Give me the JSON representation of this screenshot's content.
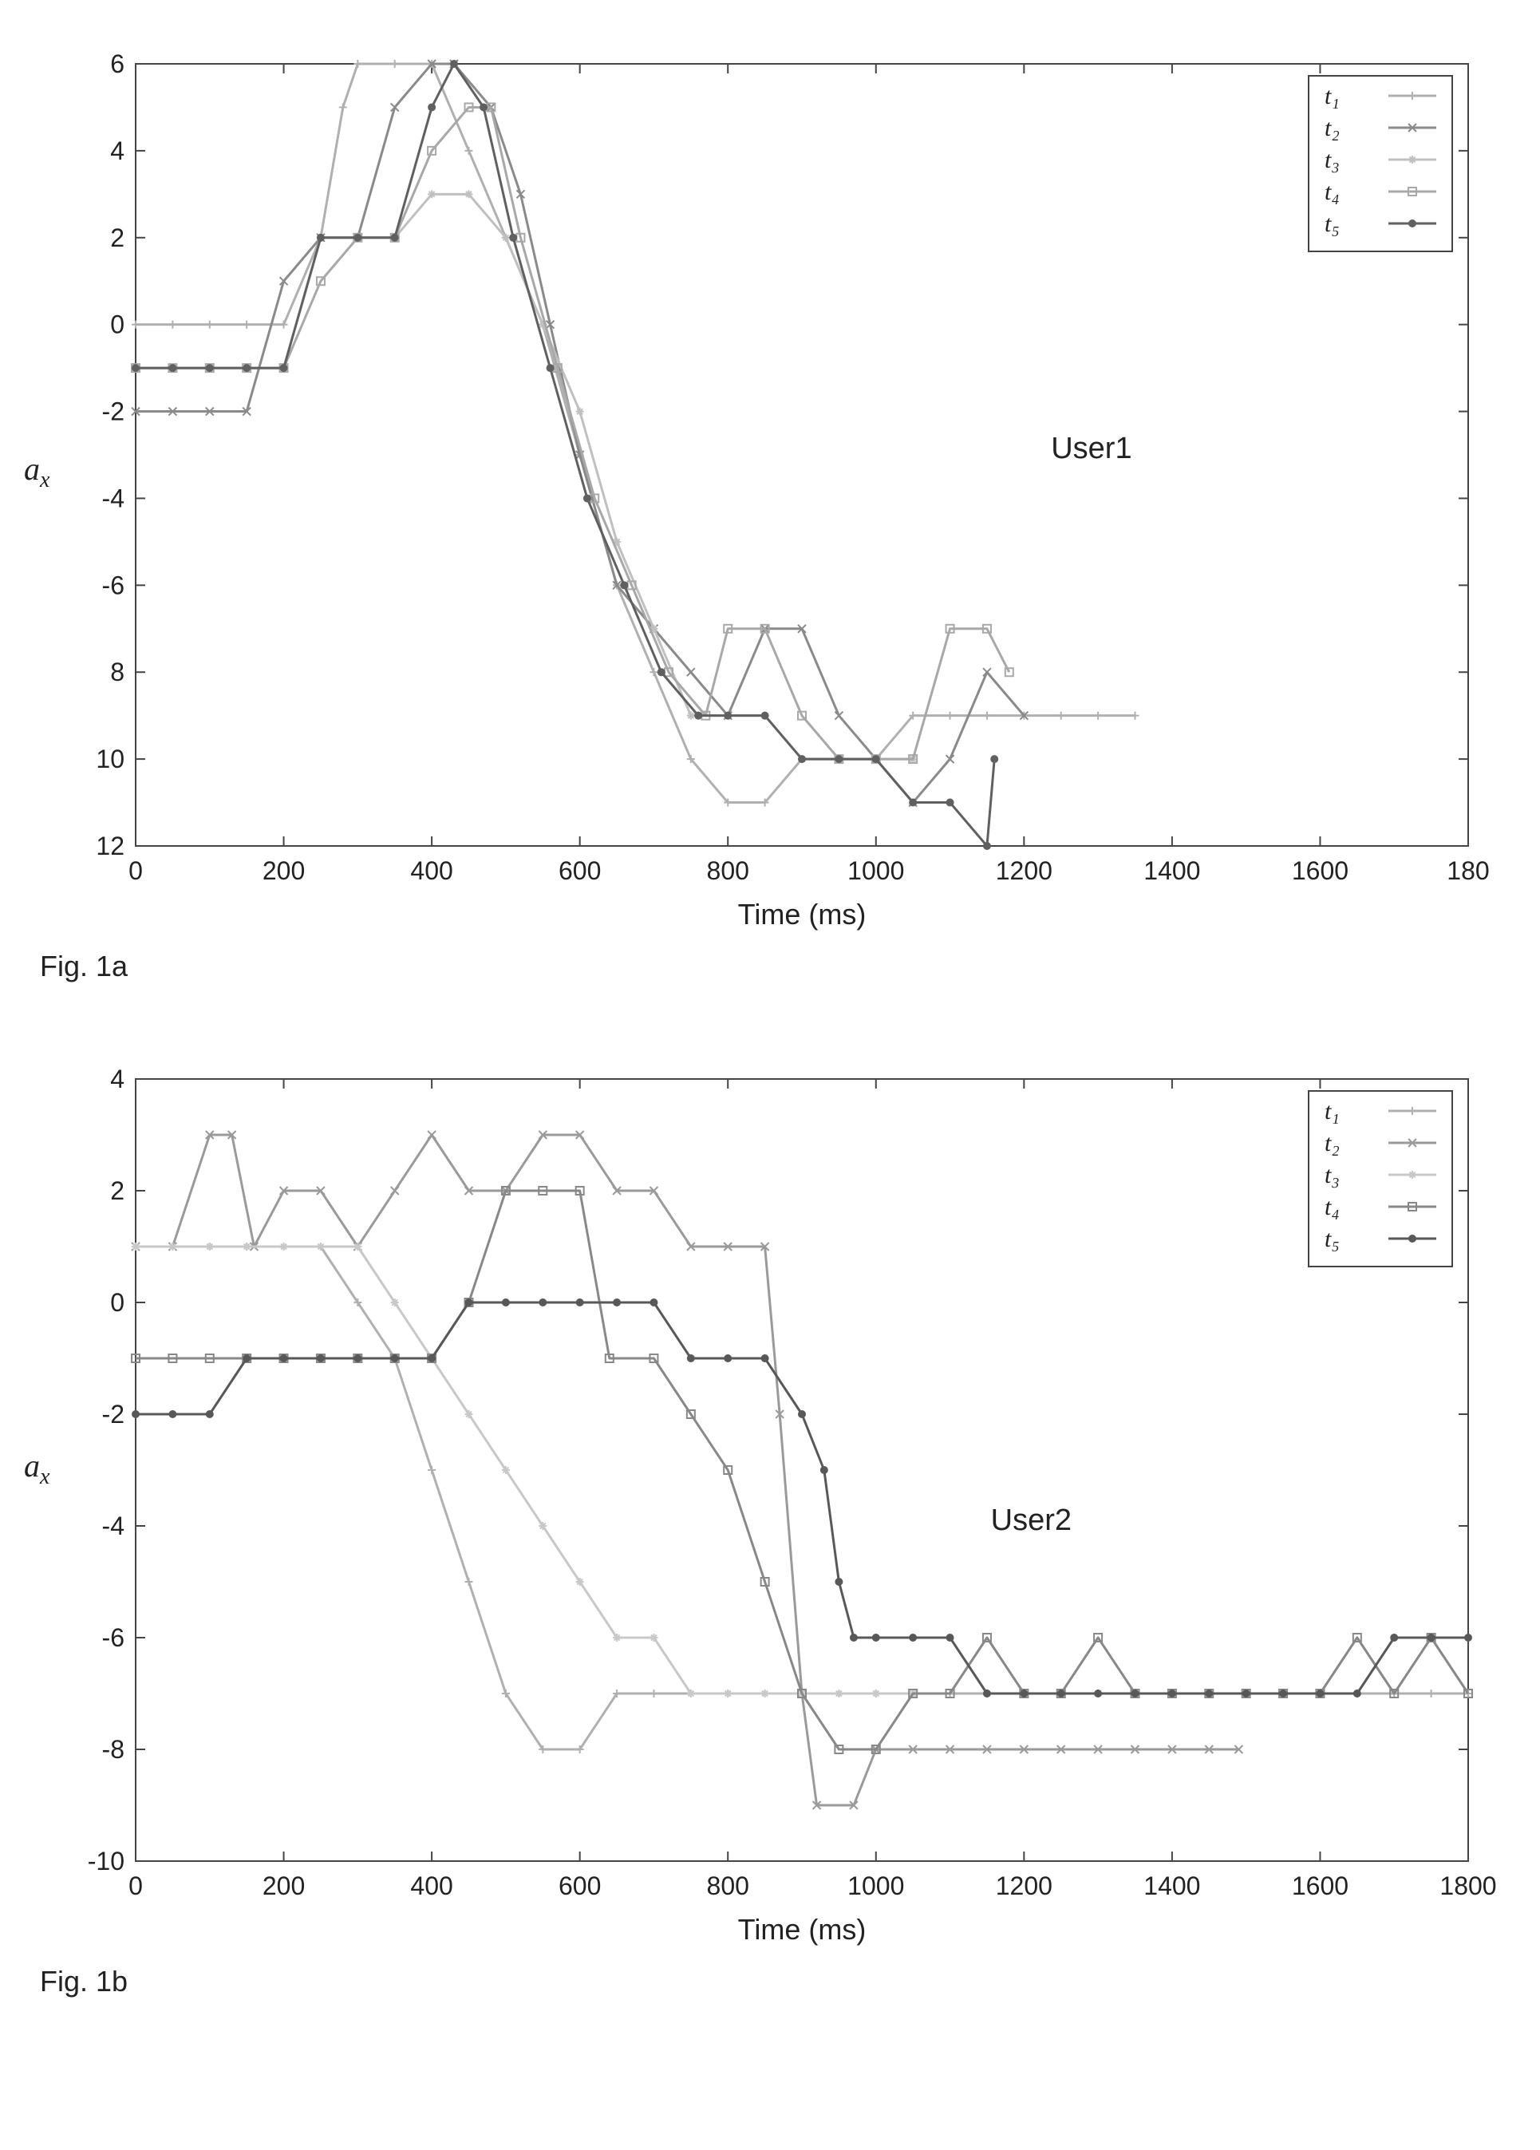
{
  "background_color": "#ffffff",
  "axis_color": "#444444",
  "tick_color": "#444444",
  "tick_fontsize": 32,
  "label_fontsize": 36,
  "annot_fontsize": 38,
  "line_width": 3,
  "marker_radius": 5,
  "legend_fontsize": 30,
  "chartA": {
    "caption": "Fig. 1a",
    "ylabel_html": "a<sub>x</sub>",
    "xlabel": "Time (ms)",
    "annotation": "User1",
    "xlim": [
      0,
      1800
    ],
    "ylim": [
      -12,
      6
    ],
    "xtick_step": 200,
    "xticks_labels": [
      "0",
      "200",
      "400",
      "600",
      "800",
      "1000",
      "1200",
      "1400",
      "1600",
      "180"
    ],
    "yticks": [
      6,
      4,
      2,
      0,
      -2,
      -4,
      -6,
      -8,
      -10,
      -12
    ],
    "yticks_labels": [
      "6",
      "4",
      "2",
      "0",
      "-2",
      "-4",
      "-6",
      "8",
      "10",
      "12"
    ],
    "legend_items": [
      "t₁",
      "t₂",
      "t₃",
      "t₄",
      "t₅"
    ],
    "series": [
      {
        "name": "t1",
        "color": "#b0b0b0",
        "marker": "plus",
        "points": [
          [
            0,
            0
          ],
          [
            50,
            0
          ],
          [
            100,
            0
          ],
          [
            150,
            0
          ],
          [
            200,
            0
          ],
          [
            250,
            2
          ],
          [
            280,
            5
          ],
          [
            300,
            6
          ],
          [
            350,
            6
          ],
          [
            400,
            6
          ],
          [
            450,
            4
          ],
          [
            500,
            2
          ],
          [
            550,
            0
          ],
          [
            600,
            -3
          ],
          [
            650,
            -6
          ],
          [
            700,
            -8
          ],
          [
            750,
            -10
          ],
          [
            800,
            -11
          ],
          [
            850,
            -11
          ],
          [
            900,
            -10
          ],
          [
            950,
            -10
          ],
          [
            1000,
            -10
          ],
          [
            1050,
            -9
          ],
          [
            1100,
            -9
          ],
          [
            1150,
            -9
          ],
          [
            1200,
            -9
          ],
          [
            1250,
            -9
          ],
          [
            1300,
            -9
          ],
          [
            1350,
            -9
          ]
        ]
      },
      {
        "name": "t2",
        "color": "#8a8a8a",
        "marker": "x",
        "points": [
          [
            0,
            -2
          ],
          [
            50,
            -2
          ],
          [
            100,
            -2
          ],
          [
            150,
            -2
          ],
          [
            200,
            1
          ],
          [
            250,
            2
          ],
          [
            300,
            2
          ],
          [
            350,
            5
          ],
          [
            400,
            6
          ],
          [
            430,
            6
          ],
          [
            480,
            5
          ],
          [
            520,
            3
          ],
          [
            560,
            0
          ],
          [
            600,
            -3
          ],
          [
            650,
            -6
          ],
          [
            700,
            -7
          ],
          [
            750,
            -8
          ],
          [
            800,
            -9
          ],
          [
            850,
            -7
          ],
          [
            900,
            -7
          ],
          [
            950,
            -9
          ],
          [
            1000,
            -10
          ],
          [
            1050,
            -11
          ],
          [
            1100,
            -10
          ],
          [
            1150,
            -8
          ],
          [
            1200,
            -9
          ]
        ]
      },
      {
        "name": "t3",
        "color": "#c0c0c0",
        "marker": "star",
        "points": [
          [
            0,
            -1
          ],
          [
            50,
            -1
          ],
          [
            100,
            -1
          ],
          [
            150,
            -1
          ],
          [
            200,
            -1
          ],
          [
            250,
            2
          ],
          [
            300,
            2
          ],
          [
            350,
            2
          ],
          [
            400,
            3
          ],
          [
            450,
            3
          ],
          [
            500,
            2
          ],
          [
            550,
            0
          ],
          [
            600,
            -2
          ],
          [
            650,
            -5
          ],
          [
            700,
            -7
          ],
          [
            750,
            -9
          ],
          [
            800,
            -9
          ],
          [
            850,
            -9
          ],
          [
            900,
            -10
          ],
          [
            950,
            -10
          ],
          [
            1000,
            -10
          ],
          [
            1050,
            -10
          ]
        ]
      },
      {
        "name": "t4",
        "color": "#a8a8a8",
        "marker": "square",
        "points": [
          [
            0,
            -1
          ],
          [
            50,
            -1
          ],
          [
            100,
            -1
          ],
          [
            150,
            -1
          ],
          [
            200,
            -1
          ],
          [
            250,
            1
          ],
          [
            300,
            2
          ],
          [
            350,
            2
          ],
          [
            400,
            4
          ],
          [
            450,
            5
          ],
          [
            480,
            5
          ],
          [
            520,
            2
          ],
          [
            570,
            -1
          ],
          [
            620,
            -4
          ],
          [
            670,
            -6
          ],
          [
            720,
            -8
          ],
          [
            770,
            -9
          ],
          [
            800,
            -7
          ],
          [
            850,
            -7
          ],
          [
            900,
            -9
          ],
          [
            950,
            -10
          ],
          [
            1000,
            -10
          ],
          [
            1050,
            -10
          ],
          [
            1100,
            -7
          ],
          [
            1150,
            -7
          ],
          [
            1180,
            -8
          ]
        ]
      },
      {
        "name": "t5",
        "color": "#606060",
        "marker": "circle",
        "points": [
          [
            0,
            -1
          ],
          [
            50,
            -1
          ],
          [
            100,
            -1
          ],
          [
            150,
            -1
          ],
          [
            200,
            -1
          ],
          [
            250,
            2
          ],
          [
            300,
            2
          ],
          [
            350,
            2
          ],
          [
            400,
            5
          ],
          [
            430,
            6
          ],
          [
            470,
            5
          ],
          [
            510,
            2
          ],
          [
            560,
            -1
          ],
          [
            610,
            -4
          ],
          [
            660,
            -6
          ],
          [
            710,
            -8
          ],
          [
            760,
            -9
          ],
          [
            800,
            -9
          ],
          [
            850,
            -9
          ],
          [
            900,
            -10
          ],
          [
            950,
            -10
          ],
          [
            1000,
            -10
          ],
          [
            1050,
            -11
          ],
          [
            1100,
            -11
          ],
          [
            1150,
            -12
          ],
          [
            1160,
            -10
          ]
        ]
      }
    ]
  },
  "chartB": {
    "caption": "Fig. 1b",
    "ylabel_html": "a<sub>x</sub>",
    "xlabel": "Time (ms)",
    "annotation": "User2",
    "xlim": [
      0,
      1800
    ],
    "ylim": [
      -10,
      4
    ],
    "xtick_step": 200,
    "xticks_labels": [
      "0",
      "200",
      "400",
      "600",
      "800",
      "1000",
      "1200",
      "1400",
      "1600",
      "1800"
    ],
    "yticks": [
      4,
      2,
      0,
      -2,
      -4,
      -6,
      -8,
      -10
    ],
    "yticks_labels": [
      "4",
      "2",
      "0",
      "-2",
      "-4",
      "-6",
      "-8",
      "-10"
    ],
    "legend_items": [
      "t₁",
      "t₂",
      "t₃",
      "t₄",
      "t₅"
    ],
    "series": [
      {
        "name": "t1",
        "color": "#b0b0b0",
        "marker": "plus",
        "points": [
          [
            0,
            1
          ],
          [
            50,
            1
          ],
          [
            100,
            1
          ],
          [
            150,
            1
          ],
          [
            200,
            1
          ],
          [
            250,
            1
          ],
          [
            300,
            0
          ],
          [
            350,
            -1
          ],
          [
            400,
            -3
          ],
          [
            450,
            -5
          ],
          [
            500,
            -7
          ],
          [
            550,
            -8
          ],
          [
            600,
            -8
          ],
          [
            650,
            -7
          ],
          [
            700,
            -7
          ],
          [
            750,
            -7
          ],
          [
            800,
            -7
          ],
          [
            850,
            -7
          ],
          [
            900,
            -7
          ],
          [
            950,
            -7
          ],
          [
            1000,
            -7
          ],
          [
            1050,
            -7
          ],
          [
            1100,
            -7
          ],
          [
            1150,
            -7
          ],
          [
            1200,
            -7
          ],
          [
            1250,
            -7
          ],
          [
            1300,
            -7
          ],
          [
            1350,
            -7
          ],
          [
            1400,
            -7
          ],
          [
            1450,
            -7
          ],
          [
            1500,
            -7
          ],
          [
            1550,
            -7
          ],
          [
            1600,
            -7
          ],
          [
            1650,
            -7
          ],
          [
            1700,
            -7
          ],
          [
            1750,
            -7
          ],
          [
            1800,
            -7
          ]
        ]
      },
      {
        "name": "t2",
        "color": "#9a9a9a",
        "marker": "x",
        "points": [
          [
            0,
            1
          ],
          [
            50,
            1
          ],
          [
            100,
            3
          ],
          [
            130,
            3
          ],
          [
            160,
            1
          ],
          [
            200,
            2
          ],
          [
            250,
            2
          ],
          [
            300,
            1
          ],
          [
            350,
            2
          ],
          [
            400,
            3
          ],
          [
            450,
            2
          ],
          [
            500,
            2
          ],
          [
            550,
            3
          ],
          [
            600,
            3
          ],
          [
            650,
            2
          ],
          [
            700,
            2
          ],
          [
            750,
            1
          ],
          [
            800,
            1
          ],
          [
            850,
            1
          ],
          [
            870,
            -2
          ],
          [
            900,
            -7
          ],
          [
            920,
            -9
          ],
          [
            970,
            -9
          ],
          [
            1000,
            -8
          ],
          [
            1050,
            -8
          ],
          [
            1100,
            -8
          ],
          [
            1150,
            -8
          ],
          [
            1200,
            -8
          ],
          [
            1250,
            -8
          ],
          [
            1300,
            -8
          ],
          [
            1350,
            -8
          ],
          [
            1400,
            -8
          ],
          [
            1450,
            -8
          ],
          [
            1490,
            -8
          ]
        ]
      },
      {
        "name": "t3",
        "color": "#c8c8c8",
        "marker": "star",
        "points": [
          [
            0,
            1
          ],
          [
            50,
            1
          ],
          [
            100,
            1
          ],
          [
            150,
            1
          ],
          [
            200,
            1
          ],
          [
            250,
            1
          ],
          [
            300,
            1
          ],
          [
            350,
            0
          ],
          [
            400,
            -1
          ],
          [
            450,
            -2
          ],
          [
            500,
            -3
          ],
          [
            550,
            -4
          ],
          [
            600,
            -5
          ],
          [
            650,
            -6
          ],
          [
            700,
            -6
          ],
          [
            750,
            -7
          ],
          [
            800,
            -7
          ],
          [
            850,
            -7
          ],
          [
            900,
            -7
          ],
          [
            950,
            -7
          ],
          [
            1000,
            -7
          ],
          [
            1050,
            -7
          ]
        ]
      },
      {
        "name": "t4",
        "color": "#888888",
        "marker": "square",
        "points": [
          [
            0,
            -1
          ],
          [
            50,
            -1
          ],
          [
            100,
            -1
          ],
          [
            150,
            -1
          ],
          [
            200,
            -1
          ],
          [
            250,
            -1
          ],
          [
            300,
            -1
          ],
          [
            350,
            -1
          ],
          [
            400,
            -1
          ],
          [
            450,
            0
          ],
          [
            500,
            2
          ],
          [
            550,
            2
          ],
          [
            600,
            2
          ],
          [
            640,
            -1
          ],
          [
            700,
            -1
          ],
          [
            750,
            -2
          ],
          [
            800,
            -3
          ],
          [
            850,
            -5
          ],
          [
            900,
            -7
          ],
          [
            950,
            -8
          ],
          [
            1000,
            -8
          ],
          [
            1050,
            -7
          ],
          [
            1100,
            -7
          ],
          [
            1150,
            -6
          ],
          [
            1200,
            -7
          ],
          [
            1250,
            -7
          ],
          [
            1300,
            -6
          ],
          [
            1350,
            -7
          ],
          [
            1400,
            -7
          ],
          [
            1450,
            -7
          ],
          [
            1500,
            -7
          ],
          [
            1550,
            -7
          ],
          [
            1600,
            -7
          ],
          [
            1650,
            -6
          ],
          [
            1700,
            -7
          ],
          [
            1750,
            -6
          ],
          [
            1800,
            -7
          ]
        ]
      },
      {
        "name": "t5",
        "color": "#585858",
        "marker": "circle",
        "points": [
          [
            0,
            -2
          ],
          [
            50,
            -2
          ],
          [
            100,
            -2
          ],
          [
            150,
            -1
          ],
          [
            200,
            -1
          ],
          [
            250,
            -1
          ],
          [
            300,
            -1
          ],
          [
            350,
            -1
          ],
          [
            400,
            -1
          ],
          [
            450,
            0
          ],
          [
            500,
            0
          ],
          [
            550,
            0
          ],
          [
            600,
            0
          ],
          [
            650,
            0
          ],
          [
            700,
            0
          ],
          [
            750,
            -1
          ],
          [
            800,
            -1
          ],
          [
            850,
            -1
          ],
          [
            900,
            -2
          ],
          [
            930,
            -3
          ],
          [
            950,
            -5
          ],
          [
            970,
            -6
          ],
          [
            1000,
            -6
          ],
          [
            1050,
            -6
          ],
          [
            1100,
            -6
          ],
          [
            1150,
            -7
          ],
          [
            1200,
            -7
          ],
          [
            1250,
            -7
          ],
          [
            1300,
            -7
          ],
          [
            1350,
            -7
          ],
          [
            1400,
            -7
          ],
          [
            1450,
            -7
          ],
          [
            1500,
            -7
          ],
          [
            1550,
            -7
          ],
          [
            1600,
            -7
          ],
          [
            1650,
            -7
          ],
          [
            1700,
            -6
          ],
          [
            1750,
            -6
          ],
          [
            1800,
            -6
          ]
        ]
      }
    ]
  }
}
